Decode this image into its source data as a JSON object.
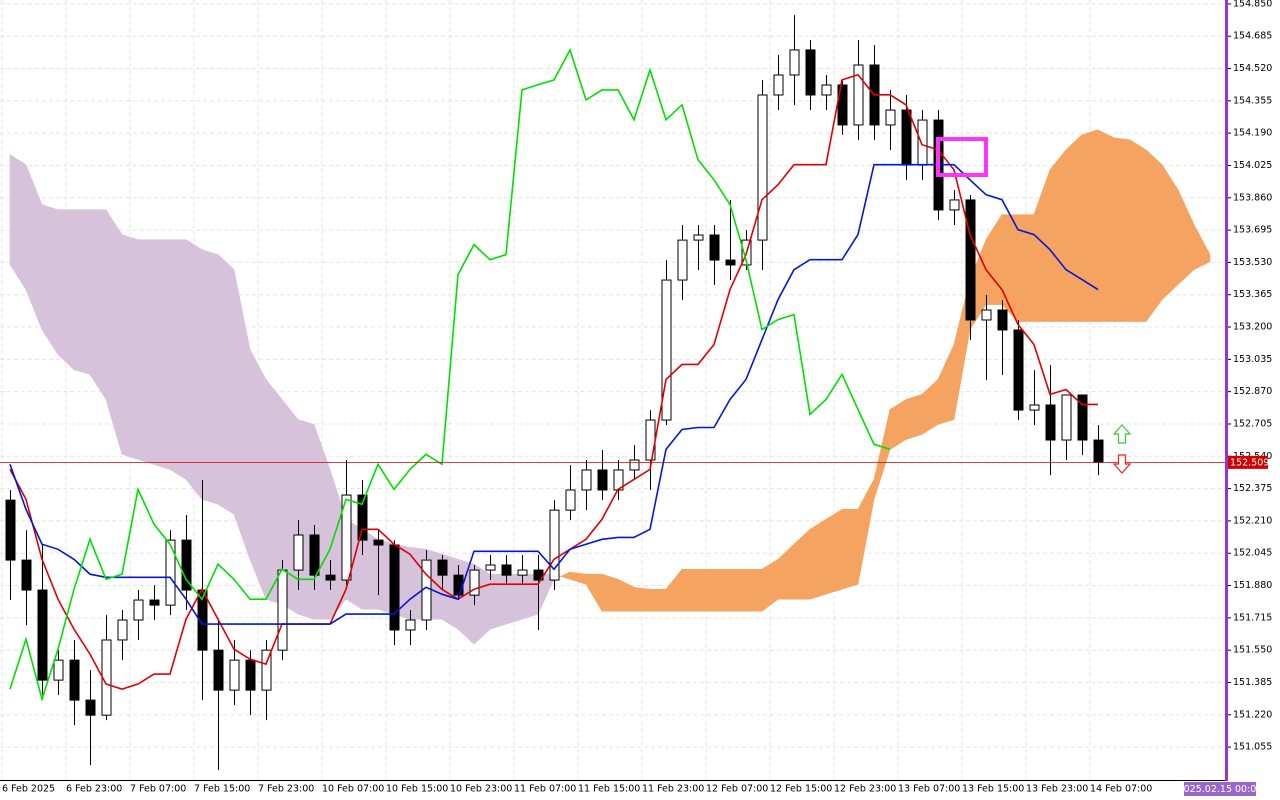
{
  "chart_data": {
    "type": "candlestick",
    "categories": [
      "6 Feb 2025",
      null,
      null,
      null,
      "6 Feb 23:00",
      null,
      null,
      null,
      "7 Feb 07:00",
      null,
      null,
      null,
      "7 Feb 15:00",
      null,
      null,
      null,
      "7 Feb 23:00",
      null,
      null,
      null,
      "10 Feb 07:00",
      null,
      null,
      null,
      "10 Feb 15:00",
      null,
      null,
      null,
      "10 Feb 23:00",
      null,
      null,
      null,
      "11 Feb 07:00",
      null,
      null,
      null,
      "11 Feb 15:00",
      null,
      null,
      null,
      "11 Feb 23:00",
      null,
      null,
      null,
      "12 Feb 07:00",
      null,
      null,
      null,
      "12 Feb 15:00",
      null,
      null,
      null,
      "12 Feb 23:00",
      null,
      null,
      null,
      "13 Feb 07:00",
      null,
      null,
      null,
      "13 Feb 15:00",
      null,
      null,
      null,
      "13 Feb 23:00",
      null,
      null,
      null,
      "14 Feb 07:00",
      null,
      null,
      null,
      null,
      null,
      null,
      null
    ],
    "open": [
      152.316,
      152.01,
      151.857,
      151.397,
      151.499,
      151.295,
      151.218,
      151.602,
      151.704,
      151.806,
      151.78,
      152.112,
      151.857,
      151.55,
      151.346,
      151.499,
      151.346,
      151.55,
      151.959,
      152.138,
      151.933,
      151.908,
      152.342,
      152.112,
      152.087,
      151.653,
      151.704,
      152.01,
      151.933,
      151.831,
      151.959,
      151.985,
      151.933,
      151.959,
      151.908,
      152.265,
      152.368,
      152.47,
      152.368,
      152.47,
      152.521,
      152.725,
      153.44,
      153.644,
      153.67,
      153.542,
      153.517,
      153.644,
      154.385,
      154.487,
      154.615,
      154.385,
      154.436,
      154.232,
      154.538,
      154.232,
      154.308,
      154.027,
      154.257,
      153.798,
      153.849,
      153.236,
      153.287,
      153.185,
      152.776,
      152.802,
      152.623,
      152.853,
      152.623,
      null,
      null,
      null,
      null,
      null,
      null,
      null
    ],
    "high": [
      152.368,
      152.163,
      152.087,
      151.55,
      151.602,
      151.448,
      151.729,
      151.755,
      151.857,
      151.882,
      152.163,
      152.24,
      152.419,
      151.704,
      151.602,
      151.55,
      151.602,
      152.01,
      152.214,
      152.189,
      152.01,
      152.521,
      152.419,
      152.163,
      152.112,
      151.755,
      152.061,
      152.036,
      151.985,
      151.985,
      152.036,
      152.036,
      152.036,
      152.036,
      152.316,
      152.495,
      152.521,
      152.572,
      152.521,
      152.597,
      152.776,
      153.542,
      153.721,
      153.721,
      153.721,
      153.849,
      153.695,
      154.461,
      154.589,
      154.793,
      154.666,
      154.487,
      154.461,
      154.666,
      154.64,
      154.41,
      154.385,
      154.308,
      154.308,
      153.9,
      153.874,
      153.363,
      153.338,
      153.236,
      152.98,
      153.006,
      152.853,
      152.853,
      152.7,
      null,
      null,
      null,
      null,
      null,
      null,
      null
    ],
    "low": [
      151.806,
      151.678,
      151.321,
      151.321,
      151.167,
      150.963,
      151.193,
      151.499,
      151.602,
      151.704,
      151.729,
      151.755,
      151.295,
      150.938,
      151.27,
      151.218,
      151.193,
      151.499,
      151.857,
      151.857,
      151.857,
      151.882,
      152.036,
      151.831,
      151.576,
      151.576,
      151.653,
      151.857,
      151.806,
      151.78,
      151.908,
      151.882,
      151.882,
      151.653,
      151.857,
      152.214,
      152.265,
      152.316,
      152.316,
      152.419,
      152.368,
      152.7,
      153.338,
      153.491,
      153.415,
      153.44,
      153.491,
      153.491,
      154.308,
      154.334,
      154.308,
      154.308,
      154.181,
      154.155,
      154.155,
      154.104,
      153.951,
      153.951,
      153.746,
      153.721,
      153.134,
      152.929,
      152.955,
      152.725,
      152.7,
      152.444,
      152.521,
      152.546,
      152.444,
      null,
      null,
      null,
      null,
      null,
      null,
      null
    ],
    "close": [
      152.01,
      151.857,
      151.397,
      151.499,
      151.295,
      151.218,
      151.602,
      151.704,
      151.806,
      151.78,
      152.112,
      151.857,
      151.55,
      151.346,
      151.499,
      151.346,
      151.55,
      151.959,
      152.138,
      151.933,
      151.908,
      152.342,
      152.112,
      152.087,
      151.653,
      151.704,
      152.01,
      151.933,
      151.831,
      151.959,
      151.985,
      151.933,
      151.959,
      151.908,
      152.265,
      152.368,
      152.47,
      152.368,
      152.47,
      152.521,
      152.725,
      153.44,
      153.644,
      153.67,
      153.542,
      153.517,
      153.644,
      154.385,
      154.487,
      154.615,
      154.385,
      154.436,
      154.232,
      154.538,
      154.232,
      154.308,
      154.027,
      154.257,
      153.798,
      153.849,
      153.236,
      153.287,
      153.185,
      152.776,
      152.802,
      152.623,
      152.853,
      152.623,
      152.509,
      null,
      null,
      null,
      null,
      null,
      null,
      null
    ],
    "bull_color": "#ffffff",
    "bear_color": "#000000",
    "lines": [
      {
        "color": "#e00000",
        "values": [
          152.473,
          152.32,
          152.014,
          151.81,
          151.657,
          151.53,
          151.377,
          151.351,
          151.377,
          151.428,
          151.428,
          151.708,
          151.861,
          151.708,
          151.555,
          151.504,
          151.479,
          151.683,
          151.683,
          151.683,
          151.683,
          151.861,
          152.167,
          152.167,
          152.091,
          152.04,
          151.938,
          151.861,
          151.81,
          151.861,
          151.887,
          151.887,
          151.887,
          151.887,
          152.014,
          152.065,
          152.116,
          152.218,
          152.371,
          152.422,
          152.473,
          152.932,
          153.009,
          153.009,
          153.111,
          153.391,
          153.57,
          153.85,
          153.927,
          154.029,
          154.029,
          154.029,
          154.462,
          154.488,
          154.386,
          154.386,
          154.335,
          154.131,
          154.105,
          154.003,
          153.672,
          153.493,
          153.391,
          153.213,
          153.111,
          152.856,
          152.881,
          152.805,
          152.805,
          null,
          null,
          null,
          null,
          null,
          null,
          null
        ]
      },
      {
        "color": "#0018d8",
        "values": [
          152.499,
          152.269,
          152.091,
          152.065,
          152.014,
          151.938,
          151.922,
          151.922,
          151.922,
          151.922,
          151.922,
          151.81,
          151.683,
          151.683,
          151.683,
          151.683,
          151.683,
          151.683,
          151.683,
          151.683,
          151.683,
          151.734,
          151.734,
          151.734,
          151.734,
          151.81,
          151.871,
          151.836,
          151.81,
          152.055,
          152.055,
          152.055,
          152.055,
          152.055,
          151.963,
          152.065,
          152.091,
          152.116,
          152.126,
          152.126,
          152.167,
          152.575,
          152.677,
          152.687,
          152.687,
          152.83,
          152.932,
          153.136,
          153.34,
          153.493,
          153.544,
          153.544,
          153.544,
          153.672,
          154.029,
          154.029,
          154.029,
          154.029,
          154.029,
          154.029,
          153.952,
          153.876,
          153.85,
          153.697,
          153.672,
          153.595,
          153.493,
          153.442,
          153.391,
          null,
          null,
          null,
          null,
          null,
          null,
          null
        ]
      },
      {
        "color": "#00e000",
        "values": [
          151.351,
          151.606,
          151.3,
          151.555,
          151.861,
          152.116,
          151.912,
          151.938,
          152.371,
          152.193,
          152.091,
          151.912,
          151.81,
          151.989,
          151.912,
          151.81,
          151.81,
          151.963,
          151.912,
          151.912,
          152.065,
          152.32,
          152.295,
          152.499,
          152.371,
          152.473,
          152.55,
          152.499,
          153.468,
          153.621,
          153.544,
          153.57,
          154.411,
          154.437,
          154.462,
          154.615,
          154.36,
          154.411,
          154.411,
          154.258,
          154.513,
          154.258,
          154.335,
          154.054,
          153.952,
          153.825,
          153.544,
          153.187,
          153.238,
          153.264,
          152.754,
          152.83,
          152.958,
          152.779,
          152.601,
          152.575,
          null,
          null,
          null,
          null,
          null,
          null,
          null,
          null,
          null,
          null,
          null,
          null,
          null,
          null,
          null,
          null,
          null,
          null,
          null,
          null
        ]
      }
    ],
    "cloud": {
      "up_color": "#f4a460",
      "down_color": "#d6c2da",
      "span_a": [
        153.519,
        153.391,
        153.187,
        153.06,
        152.983,
        152.958,
        152.83,
        152.55,
        152.524,
        152.499,
        152.473,
        152.422,
        152.32,
        152.295,
        152.244,
        152.014,
        151.81,
        151.785,
        151.734,
        151.708,
        151.708,
        151.81,
        151.759,
        151.759,
        151.734,
        151.708,
        151.708,
        151.708,
        151.657,
        151.581,
        151.657,
        151.683,
        151.708,
        151.734,
        151.912,
        151.948,
        151.938,
        151.938,
        151.912,
        151.871,
        151.861,
        151.861,
        151.963,
        151.963,
        151.963,
        151.963,
        151.963,
        151.963,
        152.014,
        152.091,
        152.167,
        152.218,
        152.269,
        152.269,
        152.422,
        152.779,
        152.83,
        152.856,
        152.932,
        153.111,
        153.442,
        153.646,
        153.774,
        153.774,
        153.774,
        154.003,
        154.105,
        154.182,
        154.207,
        154.166,
        154.156,
        154.105,
        154.029,
        153.901,
        153.723,
        153.57
      ],
      "span_b": [
        154.08,
        154.029,
        153.825,
        153.799,
        153.799,
        153.799,
        153.799,
        153.672,
        153.646,
        153.646,
        153.646,
        153.646,
        153.595,
        153.57,
        153.493,
        153.085,
        152.932,
        152.83,
        152.728,
        152.703,
        152.473,
        152.218,
        152.167,
        152.116,
        152.091,
        152.075,
        152.065,
        152.04,
        152.014,
        151.989,
        151.938,
        151.938,
        151.938,
        151.938,
        151.938,
        151.912,
        151.887,
        151.749,
        151.749,
        151.749,
        151.749,
        151.749,
        151.749,
        151.749,
        151.749,
        151.749,
        151.749,
        151.749,
        151.81,
        151.81,
        151.81,
        151.836,
        151.861,
        151.887,
        152.32,
        152.575,
        152.626,
        152.652,
        152.703,
        152.728,
        153.187,
        153.315,
        153.315,
        153.228,
        153.228,
        153.228,
        153.228,
        153.228,
        153.228,
        153.228,
        153.228,
        153.228,
        153.34,
        153.417,
        153.493,
        153.534
      ]
    },
    "last_price": 152.509,
    "last_price_color": "#d00000",
    "time_marker": "2025.02.15 00:00",
    "ylim": [
      150.887,
      154.87
    ],
    "yticks": [
      151.055,
      {
        "value": 151.22,
        "label": "151.220"
      },
      151.385,
      {
        "value": 151.55,
        "label": "151.550"
      },
      151.715,
      {
        "value": 151.88,
        "label": "151.880"
      },
      152.045,
      {
        "value": 152.21,
        "label": "152.210"
      },
      152.375,
      {
        "value": 152.54,
        "label": "152.540"
      },
      152.705,
      {
        "value": 152.87,
        "label": "152.870"
      },
      153.035,
      {
        "value": 153.2,
        "label": "153.200"
      },
      153.365,
      {
        "value": 153.53,
        "label": "153.530"
      },
      153.695,
      {
        "value": 153.86,
        "label": "153.860"
      },
      154.025,
      {
        "value": 154.19,
        "label": "154.190"
      },
      154.355,
      {
        "value": 154.52,
        "label": "154.520"
      },
      154.685,
      {
        "value": 154.85,
        "label": "154.850"
      }
    ],
    "grid": true
  }
}
